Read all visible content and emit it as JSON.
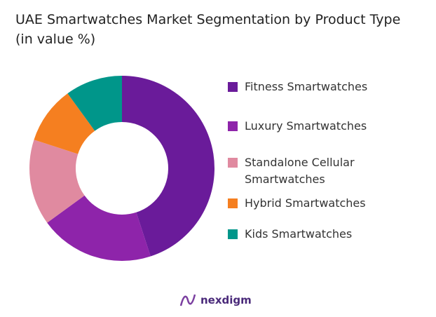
{
  "chart_data": {
    "type": "donut",
    "title": "UAE Smartwatches Market Segmentation by Product Type (in value %)",
    "categories": [
      "Fitness Smartwatches",
      "Luxury Smartwatches",
      "Standalone Cellular Smartwatches",
      "Hybrid Smartwatches",
      "Kids Smartwatches"
    ],
    "values": [
      45,
      20,
      15,
      10,
      10
    ],
    "colors": [
      "#6a1b9a",
      "#8e24aa",
      "#e08aa0",
      "#f57f20",
      "#00968a"
    ],
    "legend_position": "right"
  },
  "logo": {
    "text": "nexdigm"
  }
}
